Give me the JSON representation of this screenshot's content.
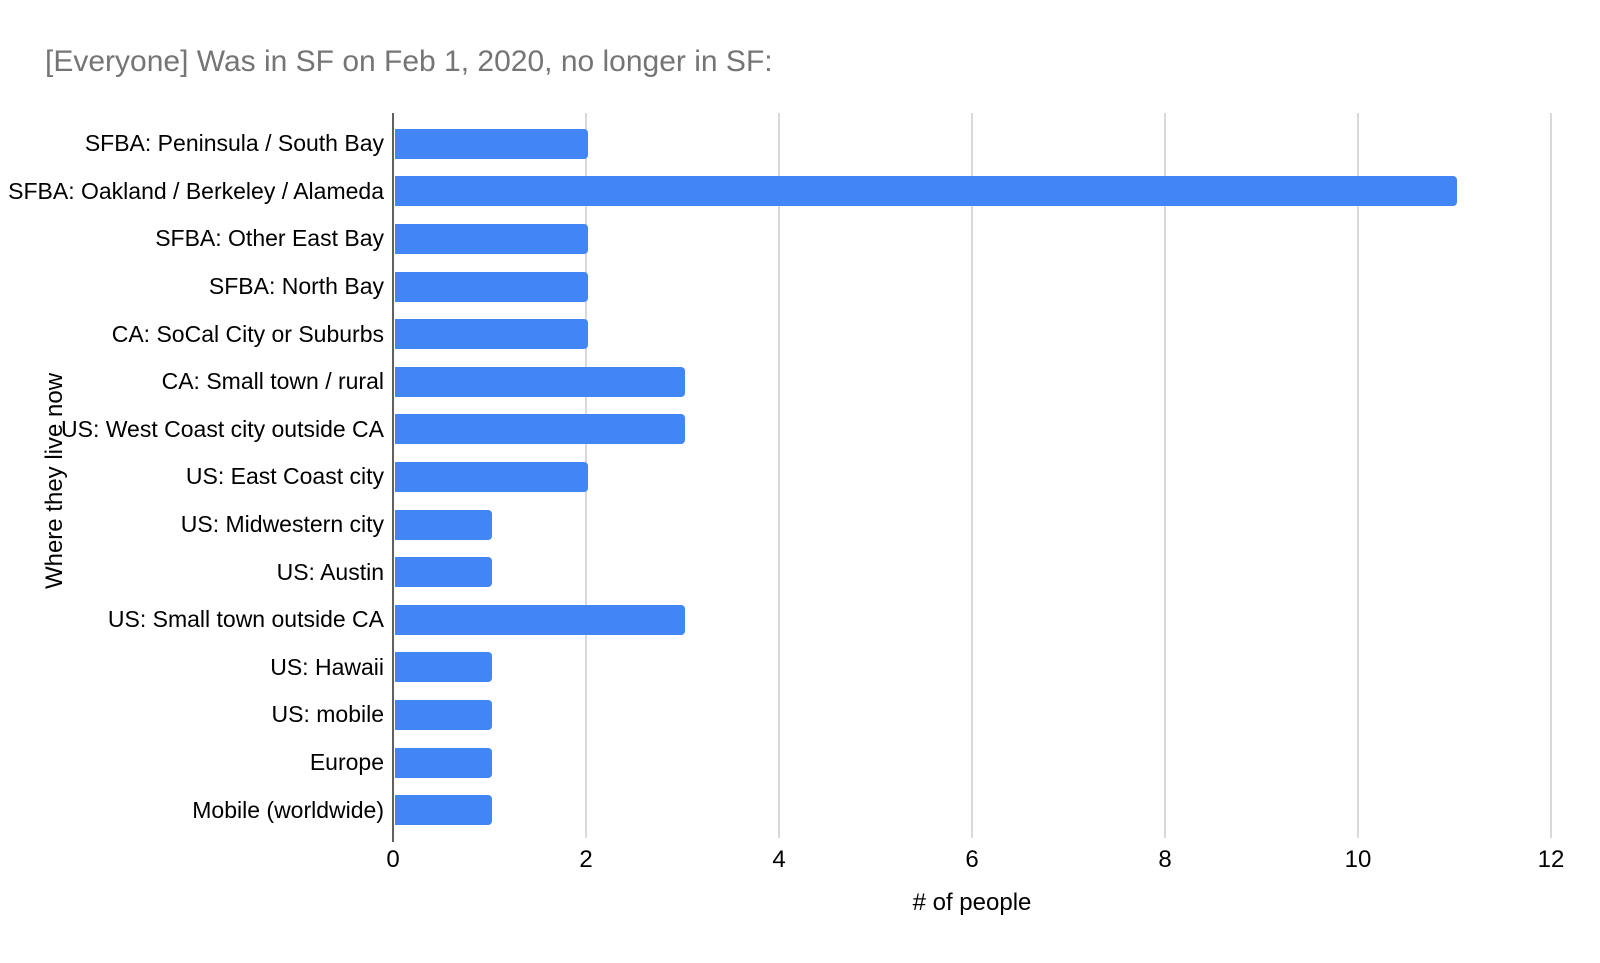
{
  "chart": {
    "title": "[Everyone] Was in SF on Feb 1, 2020, no longer in SF:",
    "xlabel": "# of people",
    "ylabel": "Where they live now"
  },
  "chart_data": {
    "type": "bar",
    "orientation": "horizontal",
    "title": "[Everyone] Was in SF on Feb 1, 2020, no longer in SF:",
    "xlabel": "# of people",
    "ylabel": "Where they live now",
    "categories": [
      "SFBA: Peninsula / South Bay",
      "SFBA: Oakland / Berkeley / Alameda",
      "SFBA: Other East Bay",
      "SFBA: North Bay",
      "CA: SoCal City or Suburbs",
      "CA: Small town / rural",
      "US: West Coast city outside CA",
      "US: East Coast city",
      "US: Midwestern city",
      "US: Austin",
      "US: Small town outside CA",
      "US: Hawaii",
      "US: mobile",
      "Europe",
      "Mobile (worldwide)"
    ],
    "values": [
      2,
      11,
      2,
      2,
      2,
      3,
      3,
      2,
      1,
      1,
      3,
      1,
      1,
      1,
      1
    ],
    "xlim": [
      0,
      12
    ],
    "xticks": [
      0,
      2,
      4,
      6,
      8,
      10,
      12
    ],
    "grid": true,
    "legend": "none",
    "colors": {
      "bar": "#4285f4",
      "title": "#757575",
      "gridline": "#d9d9d9",
      "axis": "#616161",
      "text": "#000000"
    }
  }
}
